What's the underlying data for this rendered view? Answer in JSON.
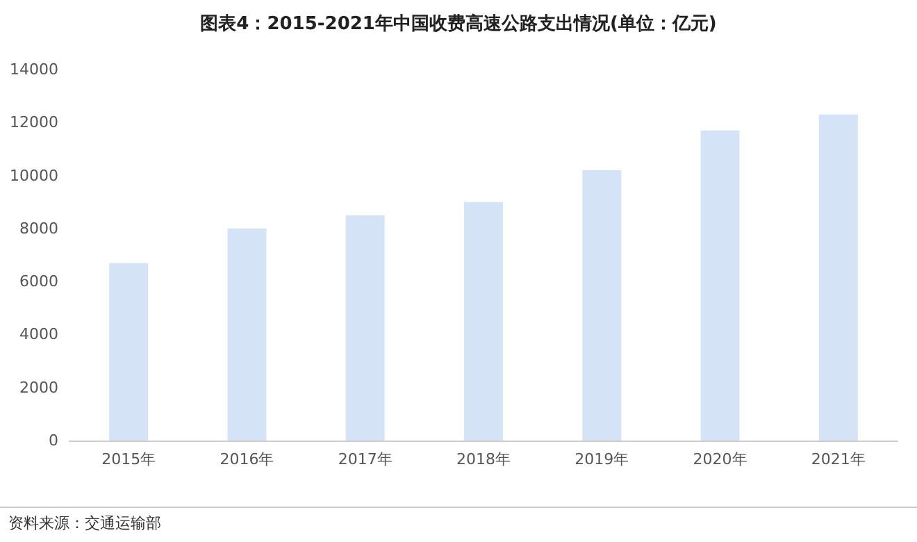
{
  "chart_data": {
    "type": "bar",
    "title": "图表4：2015-2021年中国收费高速公路支出情况(单位：亿元)",
    "categories": [
      "2015年",
      "2016年",
      "2017年",
      "2018年",
      "2019年",
      "2020年",
      "2021年"
    ],
    "values": [
      6700,
      8000,
      8500,
      9000,
      10200,
      11700,
      12300
    ],
    "color": "#d5e3f7",
    "ylim": [
      0,
      14000
    ],
    "yticks": [
      0,
      2000,
      4000,
      6000,
      8000,
      10000,
      12000,
      14000
    ],
    "grid": false,
    "annotations": [
      "资料来源：交通运输部"
    ]
  }
}
